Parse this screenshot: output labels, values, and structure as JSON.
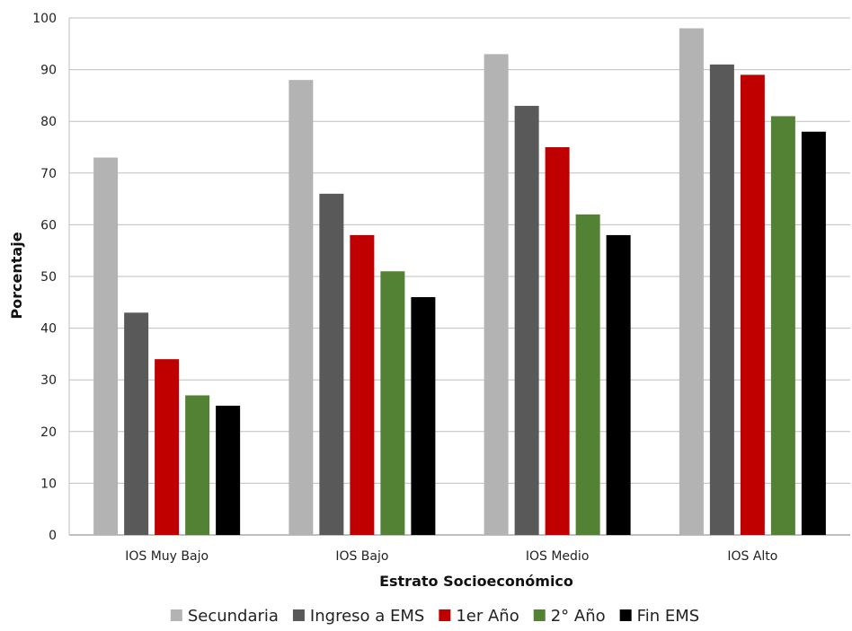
{
  "chart_data": {
    "type": "bar",
    "title": "",
    "xlabel": "Estrato Socioeconómico",
    "ylabel": "Porcentaje",
    "ylim": [
      0,
      100
    ],
    "yticks": [
      0,
      10,
      20,
      30,
      40,
      50,
      60,
      70,
      80,
      90,
      100
    ],
    "grid": true,
    "legend_position": "bottom",
    "categories": [
      "IOS Muy Bajo",
      "IOS Bajo",
      "IOS Medio",
      "IOS Alto"
    ],
    "series": [
      {
        "name": "Secundaria",
        "color": "#b3b3b3",
        "values": [
          73,
          88,
          93,
          98
        ]
      },
      {
        "name": "Ingreso a EMS",
        "color": "#595959",
        "values": [
          43,
          66,
          83,
          91
        ]
      },
      {
        "name": "1er Año",
        "color": "#c00000",
        "values": [
          34,
          58,
          75,
          89
        ]
      },
      {
        "name": "2° Año",
        "color": "#548235",
        "values": [
          27,
          51,
          62,
          81
        ]
      },
      {
        "name": "Fin EMS",
        "color": "#000000",
        "values": [
          25,
          46,
          58,
          78
        ]
      }
    ]
  }
}
